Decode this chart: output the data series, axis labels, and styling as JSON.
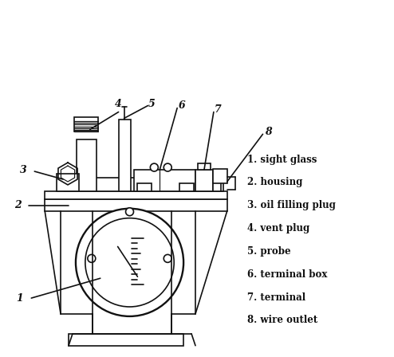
{
  "background_color": "#ffffff",
  "line_color": "#111111",
  "line_width": 1.2,
  "legend_items": [
    "1. sight glass",
    "2. housing",
    "3. oil filling plug",
    "4. vent plug",
    "5. probe",
    "6. terminal box",
    "7. terminal",
    "8. wire outlet"
  ],
  "label_fontsize": 8.5,
  "number_fontsize": 9
}
